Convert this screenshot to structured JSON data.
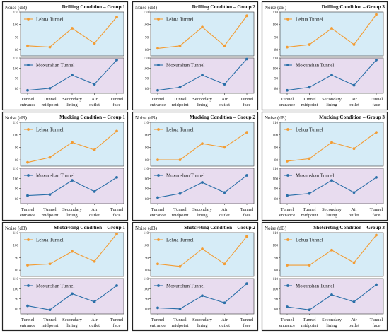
{
  "colors": {
    "lehua": "#f39c33",
    "moxunshan": "#2a6fa8",
    "top_bg": "#d6ecf7",
    "bottom_bg": "#e8dcef"
  },
  "ylabel": "Noise (dB)",
  "categories": [
    [
      "Tunnel",
      "entrance"
    ],
    [
      "Tunnel",
      "midpoint"
    ],
    [
      "Secondary",
      "lining"
    ],
    [
      "Air",
      "outlet"
    ],
    [
      "Tunnel",
      "face"
    ]
  ],
  "chart_data": [
    {
      "type": "line",
      "title": "Drilling Condition – Group 1",
      "ylabel": "Noise (dB)",
      "categories": [
        "Tunnel entrance",
        "Tunnel midpoint",
        "Secondary lining",
        "Air outlet",
        "Tunnel face"
      ],
      "series": [
        {
          "name": "Lehua Tunnel",
          "values": [
            83,
            82,
            97,
            85,
            106
          ],
          "ylim": [
            75,
            110
          ],
          "yticks": [
            80,
            90,
            100,
            110
          ]
        },
        {
          "name": "Moxunshan Tunnel",
          "values": [
            78,
            80,
            93,
            84,
            108
          ],
          "ylim": [
            75,
            110
          ],
          "yticks": [
            80,
            90,
            100,
            110
          ]
        }
      ]
    },
    {
      "type": "line",
      "title": "Drilling Condition – Group 2",
      "ylabel": "Noise (dB)",
      "categories": [
        "Tunnel entrance",
        "Tunnel midpoint",
        "Secondary lining",
        "Air outlet",
        "Tunnel face"
      ],
      "series": [
        {
          "name": "Lehua Tunnel",
          "values": [
            81,
            83,
            98,
            83,
            107
          ],
          "ylim": [
            75,
            110
          ],
          "yticks": [
            80,
            90,
            100,
            110
          ]
        },
        {
          "name": "Moxunshan Tunnel",
          "values": [
            78,
            81,
            93,
            84,
            109
          ],
          "ylim": [
            75,
            110
          ],
          "yticks": [
            80,
            90,
            100,
            110
          ]
        }
      ]
    },
    {
      "type": "line",
      "title": "Drilling Condition – Group 3",
      "ylabel": "Noise (dB)",
      "categories": [
        "Tunnel entrance",
        "Tunnel midpoint",
        "Secondary lining",
        "Air outlet",
        "Tunnel face"
      ],
      "series": [
        {
          "name": "Lehua Tunnel",
          "values": [
            82,
            84,
            97,
            84,
            108
          ],
          "ylim": [
            75,
            110
          ],
          "yticks": [
            80,
            90,
            100,
            110
          ]
        },
        {
          "name": "Moxunshan Tunnel",
          "values": [
            78,
            81,
            93,
            83,
            108
          ],
          "ylim": [
            75,
            110
          ],
          "yticks": [
            80,
            90,
            100,
            110
          ]
        }
      ]
    },
    {
      "type": "line",
      "title": "Mucking Condition – Group 1",
      "ylabel": "Noise (dB)",
      "categories": [
        "Tunnel entrance",
        "Tunnel midpoint",
        "Secondary lining",
        "Air outlet",
        "Tunnel face"
      ],
      "series": [
        {
          "name": "Lehua Tunnel",
          "values": [
            78,
            82,
            94,
            88,
            103
          ],
          "ylim": [
            75,
            110
          ],
          "yticks": [
            80,
            90,
            100,
            110
          ]
        },
        {
          "name": "Moxunshan Tunnel",
          "values": [
            83,
            84,
            98,
            87,
            101
          ],
          "ylim": [
            75,
            110
          ],
          "yticks": [
            80,
            90,
            100,
            110
          ]
        }
      ]
    },
    {
      "type": "line",
      "title": "Mucking Condition – Group 2",
      "ylabel": "Noise (dB)",
      "categories": [
        "Tunnel entrance",
        "Tunnel midpoint",
        "Secondary lining",
        "Air outlet",
        "Tunnel face"
      ],
      "series": [
        {
          "name": "Lehua Tunnel",
          "values": [
            80,
            80,
            93,
            90,
            102
          ],
          "ylim": [
            75,
            110
          ],
          "yticks": [
            80,
            90,
            100,
            110
          ]
        },
        {
          "name": "Moxunshan Tunnel",
          "values": [
            81,
            85,
            96,
            86,
            103
          ],
          "ylim": [
            75,
            110
          ],
          "yticks": [
            80,
            90,
            100,
            110
          ]
        }
      ]
    },
    {
      "type": "line",
      "title": "Mucking Condition – Group 3",
      "ylabel": "Noise (dB)",
      "categories": [
        "Tunnel entrance",
        "Tunnel midpoint",
        "Secondary lining",
        "Air outlet",
        "Tunnel face"
      ],
      "series": [
        {
          "name": "Lehua Tunnel",
          "values": [
            79,
            81,
            94,
            89,
            102
          ],
          "ylim": [
            75,
            110
          ],
          "yticks": [
            80,
            90,
            100,
            110
          ]
        },
        {
          "name": "Moxunshan Tunnel",
          "values": [
            83,
            85,
            98,
            86,
            101
          ],
          "ylim": [
            75,
            110
          ],
          "yticks": [
            80,
            90,
            100,
            110
          ]
        }
      ]
    },
    {
      "type": "line",
      "title": "Shotcreting Condition – Group 1",
      "ylabel": "Noise (dB)",
      "categories": [
        "Tunnel entrance",
        "Tunnel midpoint",
        "Secondary lining",
        "Air outlet",
        "Tunnel face"
      ],
      "series": [
        {
          "name": "Lehua Tunnel",
          "values": [
            84,
            85,
            95,
            87,
            109
          ],
          "ylim": [
            75,
            110
          ],
          "yticks": [
            80,
            90,
            100,
            110
          ]
        },
        {
          "name": "Moxunshan Tunnel",
          "values": [
            83,
            79,
            95,
            87,
            103
          ],
          "ylim": [
            75,
            110
          ],
          "yticks": [
            80,
            90,
            100,
            110
          ]
        }
      ]
    },
    {
      "type": "line",
      "title": "Shotcreting Condition – Group 2",
      "ylabel": "Noise (dB)",
      "categories": [
        "Tunnel entrance",
        "Tunnel midpoint",
        "Secondary lining",
        "Air outlet",
        "Tunnel face"
      ],
      "series": [
        {
          "name": "Lehua Tunnel",
          "values": [
            85,
            83,
            97,
            85,
            107
          ],
          "ylim": [
            75,
            110
          ],
          "yticks": [
            80,
            90,
            100,
            110
          ]
        },
        {
          "name": "Moxunshan Tunnel",
          "values": [
            81,
            80,
            93,
            86,
            105
          ],
          "ylim": [
            75,
            110
          ],
          "yticks": [
            80,
            90,
            100,
            110
          ]
        }
      ]
    },
    {
      "type": "line",
      "title": "Shotcreting Condition – Group 3",
      "ylabel": "Noise (dB)",
      "categories": [
        "Tunnel entrance",
        "Tunnel midpoint",
        "Secondary lining",
        "Air outlet",
        "Tunnel face"
      ],
      "series": [
        {
          "name": "Lehua Tunnel",
          "values": [
            84,
            84,
            96,
            86,
            108
          ],
          "ylim": [
            75,
            110
          ],
          "yticks": [
            80,
            90,
            100,
            110
          ]
        },
        {
          "name": "Moxunshan Tunnel",
          "values": [
            82,
            79,
            94,
            87,
            104
          ],
          "ylim": [
            75,
            110
          ],
          "yticks": [
            80,
            90,
            100,
            110
          ]
        }
      ]
    }
  ]
}
